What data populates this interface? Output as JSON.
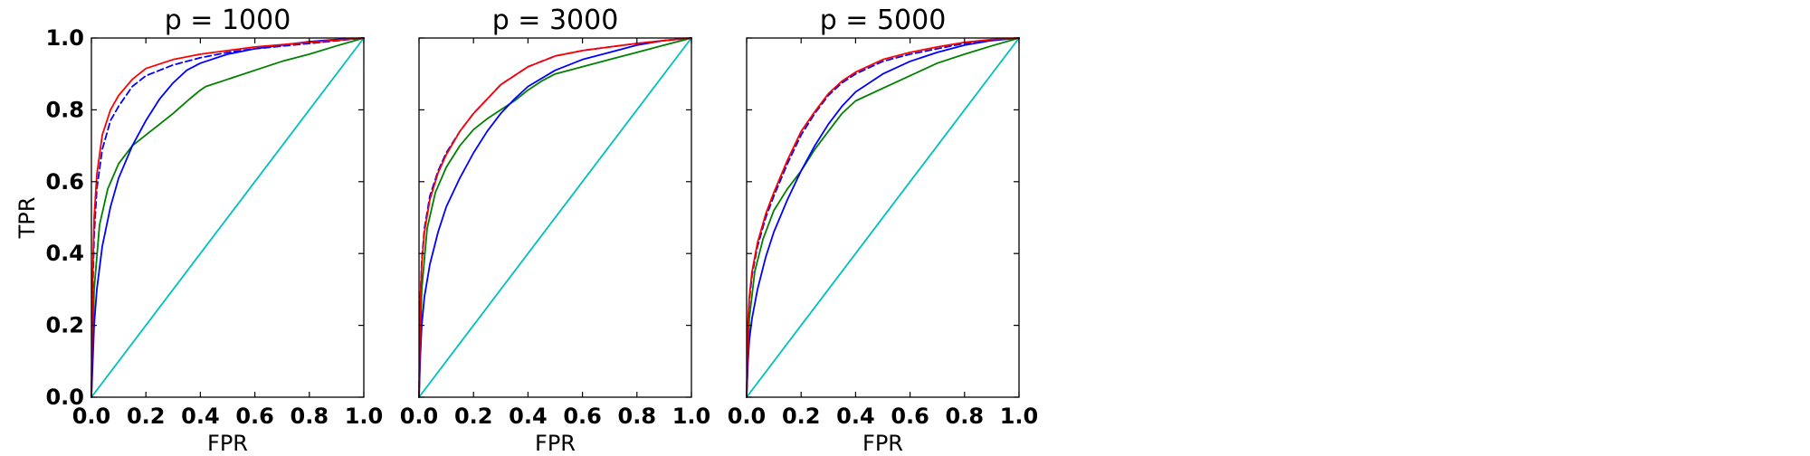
{
  "chart_data": [
    {
      "type": "line",
      "title": "p = 1000",
      "xlabel": "FPR",
      "ylabel": "TPR",
      "xlim": [
        0,
        1
      ],
      "ylim": [
        0,
        1
      ],
      "xticks": [
        "0.0",
        "0.2",
        "0.4",
        "0.6",
        "0.8",
        "1.0"
      ],
      "yticks": [
        "0.0",
        "0.2",
        "0.4",
        "0.6",
        "0.8",
        "1.0"
      ],
      "grid": false,
      "series": [
        {
          "color": "#00bfbf",
          "dash": "solid",
          "x": [
            0,
            1
          ],
          "y": [
            0,
            1
          ]
        },
        {
          "color": "#008000",
          "dash": "solid",
          "x": [
            0,
            0.01,
            0.03,
            0.06,
            0.1,
            0.15,
            0.2,
            0.25,
            0.3,
            0.33,
            0.36,
            0.4,
            0.42,
            0.5,
            0.6,
            0.7,
            0.8,
            0.9,
            1.0
          ],
          "y": [
            0,
            0.3,
            0.48,
            0.58,
            0.65,
            0.7,
            0.73,
            0.76,
            0.79,
            0.81,
            0.83,
            0.855,
            0.865,
            0.885,
            0.91,
            0.935,
            0.955,
            0.978,
            1.0
          ]
        },
        {
          "color": "#0000ff",
          "dash": "solid",
          "x": [
            0,
            0.005,
            0.01,
            0.02,
            0.04,
            0.07,
            0.1,
            0.15,
            0.2,
            0.25,
            0.3,
            0.35,
            0.4,
            0.5,
            0.6,
            0.7,
            0.8,
            0.9,
            1.0
          ],
          "y": [
            0,
            0.1,
            0.2,
            0.3,
            0.42,
            0.53,
            0.61,
            0.7,
            0.77,
            0.83,
            0.875,
            0.91,
            0.93,
            0.955,
            0.97,
            0.98,
            0.99,
            0.996,
            1.0
          ]
        },
        {
          "color": "#0000ff",
          "dash": "dashed",
          "x": [
            0,
            0.005,
            0.01,
            0.02,
            0.04,
            0.07,
            0.1,
            0.15,
            0.2,
            0.3,
            0.4,
            0.5,
            0.6,
            0.8,
            1.0
          ],
          "y": [
            0,
            0.3,
            0.45,
            0.58,
            0.69,
            0.77,
            0.81,
            0.865,
            0.895,
            0.925,
            0.945,
            0.96,
            0.97,
            0.985,
            1.0
          ]
        },
        {
          "color": "#ff0000",
          "dash": "solid",
          "x": [
            0,
            0.005,
            0.01,
            0.02,
            0.04,
            0.07,
            0.1,
            0.15,
            0.2,
            0.3,
            0.4,
            0.5,
            0.6,
            0.8,
            1.0
          ],
          "y": [
            0,
            0.35,
            0.5,
            0.62,
            0.73,
            0.8,
            0.84,
            0.885,
            0.915,
            0.94,
            0.955,
            0.965,
            0.975,
            0.988,
            1.0
          ]
        }
      ]
    },
    {
      "type": "line",
      "title": "p = 3000",
      "xlabel": "FPR",
      "ylabel": "",
      "xlim": [
        0,
        1
      ],
      "ylim": [
        0,
        1
      ],
      "xticks": [
        "0.0",
        "0.2",
        "0.4",
        "0.6",
        "0.8",
        "1.0"
      ],
      "yticks": [],
      "grid": false,
      "series": [
        {
          "color": "#00bfbf",
          "dash": "solid",
          "x": [
            0,
            1
          ],
          "y": [
            0,
            1
          ]
        },
        {
          "color": "#008000",
          "dash": "solid",
          "x": [
            0,
            0.01,
            0.03,
            0.06,
            0.1,
            0.15,
            0.2,
            0.25,
            0.3,
            0.35,
            0.4,
            0.45,
            0.5,
            0.6,
            0.7,
            0.8,
            0.9,
            1.0
          ],
          "y": [
            0,
            0.3,
            0.47,
            0.57,
            0.64,
            0.7,
            0.745,
            0.775,
            0.8,
            0.825,
            0.855,
            0.88,
            0.9,
            0.92,
            0.94,
            0.96,
            0.98,
            1.0
          ]
        },
        {
          "color": "#0000ff",
          "dash": "solid",
          "x": [
            0,
            0.005,
            0.01,
            0.02,
            0.04,
            0.07,
            0.1,
            0.15,
            0.2,
            0.25,
            0.3,
            0.35,
            0.4,
            0.5,
            0.6,
            0.7,
            0.8,
            0.9,
            1.0
          ],
          "y": [
            0,
            0.12,
            0.2,
            0.28,
            0.37,
            0.46,
            0.53,
            0.61,
            0.68,
            0.74,
            0.79,
            0.83,
            0.865,
            0.91,
            0.94,
            0.96,
            0.98,
            0.993,
            1.0
          ]
        },
        {
          "color": "#0000ff",
          "dash": "dashed",
          "x": [
            0,
            0.005,
            0.01,
            0.02,
            0.04,
            0.07,
            0.1,
            0.15,
            0.2,
            0.25,
            0.3,
            0.4,
            0.5,
            0.6,
            0.7,
            0.8,
            0.9,
            1.0
          ],
          "y": [
            0,
            0.28,
            0.38,
            0.47,
            0.56,
            0.63,
            0.68,
            0.74,
            0.79,
            0.83,
            0.87,
            0.92,
            0.95,
            0.965,
            0.975,
            0.985,
            0.993,
            1.0
          ]
        },
        {
          "color": "#ff0000",
          "dash": "solid",
          "x": [
            0,
            0.005,
            0.01,
            0.02,
            0.04,
            0.07,
            0.1,
            0.15,
            0.2,
            0.25,
            0.3,
            0.4,
            0.5,
            0.6,
            0.7,
            0.8,
            0.9,
            1.0
          ],
          "y": [
            0,
            0.27,
            0.37,
            0.46,
            0.55,
            0.625,
            0.675,
            0.74,
            0.79,
            0.83,
            0.87,
            0.92,
            0.95,
            0.965,
            0.975,
            0.985,
            0.993,
            1.0
          ]
        }
      ]
    },
    {
      "type": "line",
      "title": "p = 5000",
      "xlabel": "FPR",
      "ylabel": "",
      "xlim": [
        0,
        1
      ],
      "ylim": [
        0,
        1
      ],
      "xticks": [
        "0.0",
        "0.2",
        "0.4",
        "0.6",
        "0.8",
        "1.0"
      ],
      "yticks": [],
      "grid": false,
      "series": [
        {
          "color": "#00bfbf",
          "dash": "solid",
          "x": [
            0,
            1
          ],
          "y": [
            0,
            1
          ]
        },
        {
          "color": "#008000",
          "dash": "solid",
          "x": [
            0,
            0.01,
            0.03,
            0.06,
            0.1,
            0.15,
            0.2,
            0.25,
            0.3,
            0.35,
            0.4,
            0.5,
            0.6,
            0.7,
            0.8,
            0.9,
            1.0
          ],
          "y": [
            0,
            0.22,
            0.35,
            0.44,
            0.52,
            0.58,
            0.63,
            0.69,
            0.74,
            0.79,
            0.825,
            0.86,
            0.895,
            0.93,
            0.955,
            0.978,
            1.0
          ]
        },
        {
          "color": "#0000ff",
          "dash": "solid",
          "x": [
            0,
            0.005,
            0.01,
            0.02,
            0.04,
            0.07,
            0.1,
            0.15,
            0.2,
            0.25,
            0.3,
            0.35,
            0.4,
            0.5,
            0.6,
            0.7,
            0.8,
            0.9,
            1.0
          ],
          "y": [
            0,
            0.1,
            0.16,
            0.22,
            0.3,
            0.39,
            0.46,
            0.55,
            0.63,
            0.7,
            0.76,
            0.81,
            0.85,
            0.9,
            0.935,
            0.96,
            0.98,
            0.993,
            1.0
          ]
        },
        {
          "color": "#0000ff",
          "dash": "dashed",
          "x": [
            0,
            0.005,
            0.01,
            0.02,
            0.04,
            0.07,
            0.1,
            0.15,
            0.2,
            0.25,
            0.3,
            0.35,
            0.4,
            0.5,
            0.6,
            0.7,
            0.8,
            0.9,
            1.0
          ],
          "y": [
            0,
            0.2,
            0.27,
            0.34,
            0.42,
            0.5,
            0.56,
            0.65,
            0.73,
            0.79,
            0.84,
            0.875,
            0.9,
            0.935,
            0.955,
            0.97,
            0.985,
            0.995,
            1.0
          ]
        },
        {
          "color": "#ff0000",
          "dash": "solid",
          "x": [
            0,
            0.005,
            0.01,
            0.02,
            0.04,
            0.07,
            0.1,
            0.15,
            0.2,
            0.25,
            0.3,
            0.35,
            0.4,
            0.5,
            0.6,
            0.7,
            0.8,
            0.9,
            1.0
          ],
          "y": [
            0,
            0.21,
            0.28,
            0.35,
            0.43,
            0.51,
            0.57,
            0.66,
            0.74,
            0.795,
            0.845,
            0.88,
            0.905,
            0.94,
            0.96,
            0.975,
            0.988,
            0.996,
            1.0
          ]
        }
      ]
    }
  ]
}
